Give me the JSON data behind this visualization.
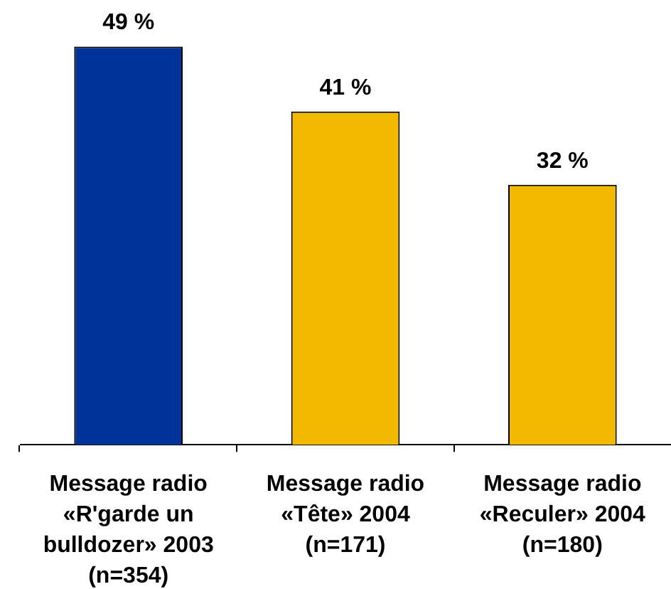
{
  "chart_data": {
    "type": "bar",
    "categories": [
      "Message radio «R'garde un bulldozer» 2003 (n=354)",
      "Message radio «Tête» 2004 (n=171)",
      "Message radio «Reculer» 2004 (n=180)"
    ],
    "values": [
      49,
      41,
      32
    ],
    "colors": [
      "#003399",
      "#f2b900",
      "#f2b900"
    ],
    "value_labels": [
      "49 %",
      "41 %",
      "32 %"
    ]
  }
}
